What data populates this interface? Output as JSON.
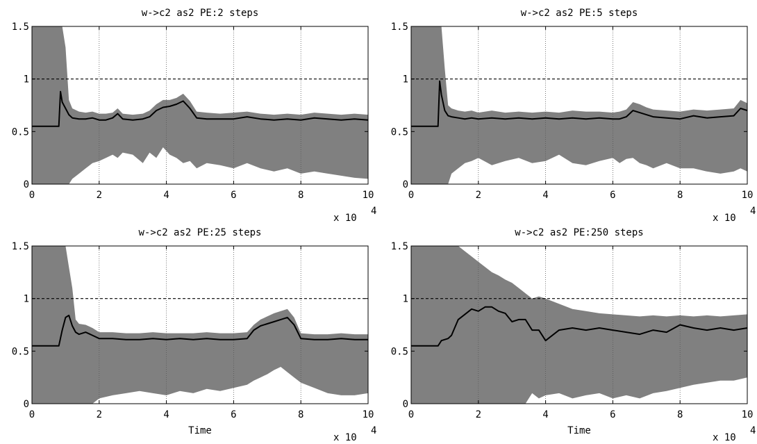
{
  "chart_data": [
    {
      "type": "area",
      "title": "w->c2 as2 PE:2 steps",
      "xlabel": "",
      "x_multiplier_label": "x 10",
      "x_multiplier_exp": "4",
      "xlim": [
        0,
        100000
      ],
      "ylim": [
        0,
        1.5
      ],
      "xticks": [
        0,
        2,
        4,
        6,
        8,
        10
      ],
      "yticks": [
        "0",
        "0.5",
        "1",
        "1.5"
      ],
      "reference_line": 1,
      "grid": "vertical-dotted",
      "colors": {
        "band": "#808080",
        "line": "#000000"
      },
      "series": [
        {
          "x": [
            0,
            8000,
            8500,
            9000,
            10000,
            11000,
            12000,
            14000,
            16000,
            18000,
            20000,
            22000,
            24000,
            25500,
            27000,
            30000,
            33000,
            35000,
            37000,
            39000,
            41000,
            43000,
            45000,
            47000,
            49000,
            52000,
            56000,
            60000,
            64000,
            68000,
            72000,
            76000,
            80000,
            84000,
            88000,
            92000,
            96000,
            100000
          ],
          "mean": [
            0.55,
            0.55,
            0.88,
            0.78,
            0.72,
            0.66,
            0.63,
            0.62,
            0.62,
            0.63,
            0.61,
            0.61,
            0.63,
            0.67,
            0.62,
            0.61,
            0.62,
            0.64,
            0.7,
            0.73,
            0.74,
            0.76,
            0.79,
            0.72,
            0.63,
            0.62,
            0.62,
            0.62,
            0.64,
            0.62,
            0.61,
            0.62,
            0.61,
            0.63,
            0.62,
            0.61,
            0.62,
            0.61
          ],
          "upper": [
            1.5,
            1.5,
            1.5,
            1.5,
            1.3,
            0.8,
            0.72,
            0.69,
            0.68,
            0.69,
            0.67,
            0.67,
            0.68,
            0.72,
            0.67,
            0.66,
            0.67,
            0.7,
            0.76,
            0.8,
            0.8,
            0.82,
            0.86,
            0.79,
            0.69,
            0.68,
            0.67,
            0.68,
            0.69,
            0.67,
            0.66,
            0.67,
            0.66,
            0.68,
            0.67,
            0.66,
            0.67,
            0.66
          ],
          "lower": [
            0,
            0,
            0,
            0,
            0,
            0,
            0.05,
            0.1,
            0.15,
            0.2,
            0.22,
            0.25,
            0.28,
            0.25,
            0.3,
            0.28,
            0.2,
            0.3,
            0.25,
            0.35,
            0.28,
            0.25,
            0.2,
            0.22,
            0.15,
            0.2,
            0.18,
            0.15,
            0.2,
            0.15,
            0.12,
            0.15,
            0.1,
            0.12,
            0.1,
            0.08,
            0.06,
            0.05
          ]
        }
      ]
    },
    {
      "type": "area",
      "title": "w->c2 as2 PE:5 steps",
      "xlabel": "",
      "x_multiplier_label": "x 10",
      "x_multiplier_exp": "4",
      "xlim": [
        0,
        100000
      ],
      "ylim": [
        0,
        1.5
      ],
      "xticks": [
        0,
        2,
        4,
        6,
        8,
        10
      ],
      "yticks": [
        "0",
        "0.5",
        "1",
        "1.5"
      ],
      "reference_line": 1,
      "grid": "vertical-dotted",
      "colors": {
        "band": "#808080",
        "line": "#000000"
      },
      "series": [
        {
          "x": [
            0,
            8000,
            8500,
            9000,
            10000,
            11000,
            12000,
            14000,
            16000,
            18000,
            20000,
            24000,
            28000,
            32000,
            36000,
            40000,
            44000,
            48000,
            52000,
            56000,
            60000,
            62000,
            64000,
            66000,
            68000,
            70000,
            72000,
            76000,
            80000,
            84000,
            88000,
            92000,
            96000,
            98000,
            100000
          ],
          "mean": [
            0.55,
            0.55,
            0.98,
            0.85,
            0.7,
            0.65,
            0.64,
            0.63,
            0.62,
            0.63,
            0.62,
            0.63,
            0.62,
            0.63,
            0.62,
            0.63,
            0.62,
            0.63,
            0.62,
            0.63,
            0.62,
            0.62,
            0.64,
            0.7,
            0.68,
            0.66,
            0.64,
            0.63,
            0.62,
            0.65,
            0.63,
            0.64,
            0.65,
            0.72,
            0.7
          ],
          "upper": [
            1.5,
            1.5,
            1.5,
            1.5,
            1.1,
            0.75,
            0.72,
            0.7,
            0.69,
            0.7,
            0.68,
            0.7,
            0.68,
            0.69,
            0.68,
            0.69,
            0.68,
            0.7,
            0.69,
            0.69,
            0.68,
            0.69,
            0.71,
            0.78,
            0.76,
            0.73,
            0.71,
            0.7,
            0.69,
            0.71,
            0.7,
            0.71,
            0.72,
            0.8,
            0.77
          ],
          "lower": [
            0,
            0,
            0,
            0,
            0,
            0,
            0.1,
            0.15,
            0.2,
            0.22,
            0.25,
            0.18,
            0.22,
            0.25,
            0.2,
            0.22,
            0.28,
            0.2,
            0.18,
            0.22,
            0.25,
            0.2,
            0.24,
            0.25,
            0.2,
            0.18,
            0.15,
            0.2,
            0.15,
            0.15,
            0.12,
            0.1,
            0.12,
            0.15,
            0.12
          ]
        }
      ]
    },
    {
      "type": "area",
      "title": "w->c2 as2 PE:25 steps",
      "xlabel": "Time",
      "x_multiplier_label": "x 10",
      "x_multiplier_exp": "4",
      "xlim": [
        0,
        100000
      ],
      "ylim": [
        0,
        1.5
      ],
      "xticks": [
        0,
        2,
        4,
        6,
        8,
        10
      ],
      "yticks": [
        "0",
        "0.5",
        "1",
        "1.5"
      ],
      "reference_line": 1,
      "grid": "vertical-dotted",
      "colors": {
        "band": "#808080",
        "line": "#000000"
      },
      "series": [
        {
          "x": [
            0,
            8000,
            9000,
            10000,
            11000,
            12000,
            13000,
            14000,
            16000,
            18000,
            20000,
            24000,
            28000,
            32000,
            36000,
            40000,
            44000,
            48000,
            52000,
            56000,
            60000,
            64000,
            66000,
            68000,
            70000,
            72000,
            74000,
            76000,
            78000,
            80000,
            84000,
            88000,
            92000,
            96000,
            100000
          ],
          "mean": [
            0.55,
            0.55,
            0.7,
            0.82,
            0.84,
            0.74,
            0.68,
            0.66,
            0.68,
            0.65,
            0.62,
            0.62,
            0.61,
            0.61,
            0.62,
            0.61,
            0.62,
            0.61,
            0.62,
            0.61,
            0.61,
            0.62,
            0.7,
            0.74,
            0.76,
            0.78,
            0.8,
            0.82,
            0.75,
            0.62,
            0.61,
            0.61,
            0.62,
            0.61,
            0.61
          ],
          "upper": [
            1.5,
            1.5,
            1.5,
            1.5,
            1.3,
            1.1,
            0.8,
            0.76,
            0.75,
            0.72,
            0.68,
            0.68,
            0.67,
            0.67,
            0.68,
            0.67,
            0.67,
            0.67,
            0.68,
            0.67,
            0.67,
            0.68,
            0.75,
            0.8,
            0.83,
            0.86,
            0.88,
            0.9,
            0.82,
            0.67,
            0.66,
            0.66,
            0.67,
            0.66,
            0.66
          ],
          "lower": [
            0,
            0,
            0,
            0,
            0,
            0,
            0,
            0,
            0,
            0,
            0.05,
            0.08,
            0.1,
            0.12,
            0.1,
            0.08,
            0.12,
            0.1,
            0.14,
            0.12,
            0.15,
            0.18,
            0.22,
            0.25,
            0.28,
            0.32,
            0.35,
            0.3,
            0.25,
            0.2,
            0.15,
            0.1,
            0.08,
            0.08,
            0.1
          ]
        }
      ]
    },
    {
      "type": "area",
      "title": "w->c2 as2 PE:250 steps",
      "xlabel": "Time",
      "x_multiplier_label": "x 10",
      "x_multiplier_exp": "4",
      "xlim": [
        0,
        100000
      ],
      "ylim": [
        0,
        1.5
      ],
      "xticks": [
        0,
        2,
        4,
        6,
        8,
        10
      ],
      "yticks": [
        "0",
        "0.5",
        "1",
        "1.5"
      ],
      "reference_line": 1,
      "grid": "vertical-dotted",
      "colors": {
        "band": "#808080",
        "line": "#000000"
      },
      "series": [
        {
          "x": [
            0,
            8000,
            9000,
            11000,
            12000,
            14000,
            16000,
            18000,
            20000,
            22000,
            24000,
            26000,
            28000,
            30000,
            32000,
            34000,
            36000,
            38000,
            40000,
            44000,
            48000,
            52000,
            56000,
            60000,
            64000,
            68000,
            72000,
            76000,
            80000,
            84000,
            88000,
            92000,
            96000,
            100000
          ],
          "mean": [
            0.55,
            0.55,
            0.6,
            0.62,
            0.65,
            0.8,
            0.85,
            0.9,
            0.88,
            0.92,
            0.92,
            0.88,
            0.86,
            0.78,
            0.8,
            0.8,
            0.7,
            0.7,
            0.6,
            0.7,
            0.72,
            0.7,
            0.72,
            0.7,
            0.68,
            0.66,
            0.7,
            0.68,
            0.75,
            0.72,
            0.7,
            0.72,
            0.7,
            0.72
          ],
          "upper": [
            1.5,
            1.5,
            1.5,
            1.5,
            1.5,
            1.5,
            1.45,
            1.4,
            1.35,
            1.3,
            1.25,
            1.22,
            1.18,
            1.15,
            1.1,
            1.05,
            1.0,
            1.02,
            1.0,
            0.95,
            0.9,
            0.88,
            0.86,
            0.85,
            0.84,
            0.83,
            0.84,
            0.83,
            0.84,
            0.83,
            0.84,
            0.83,
            0.84,
            0.85
          ],
          "lower": [
            0,
            0,
            0,
            0,
            0,
            0,
            0,
            0,
            0,
            0,
            0,
            0,
            0,
            0,
            0,
            0,
            0.1,
            0.05,
            0.08,
            0.1,
            0.05,
            0.08,
            0.1,
            0.05,
            0.08,
            0.05,
            0.1,
            0.12,
            0.15,
            0.18,
            0.2,
            0.22,
            0.22,
            0.25
          ]
        }
      ]
    }
  ]
}
